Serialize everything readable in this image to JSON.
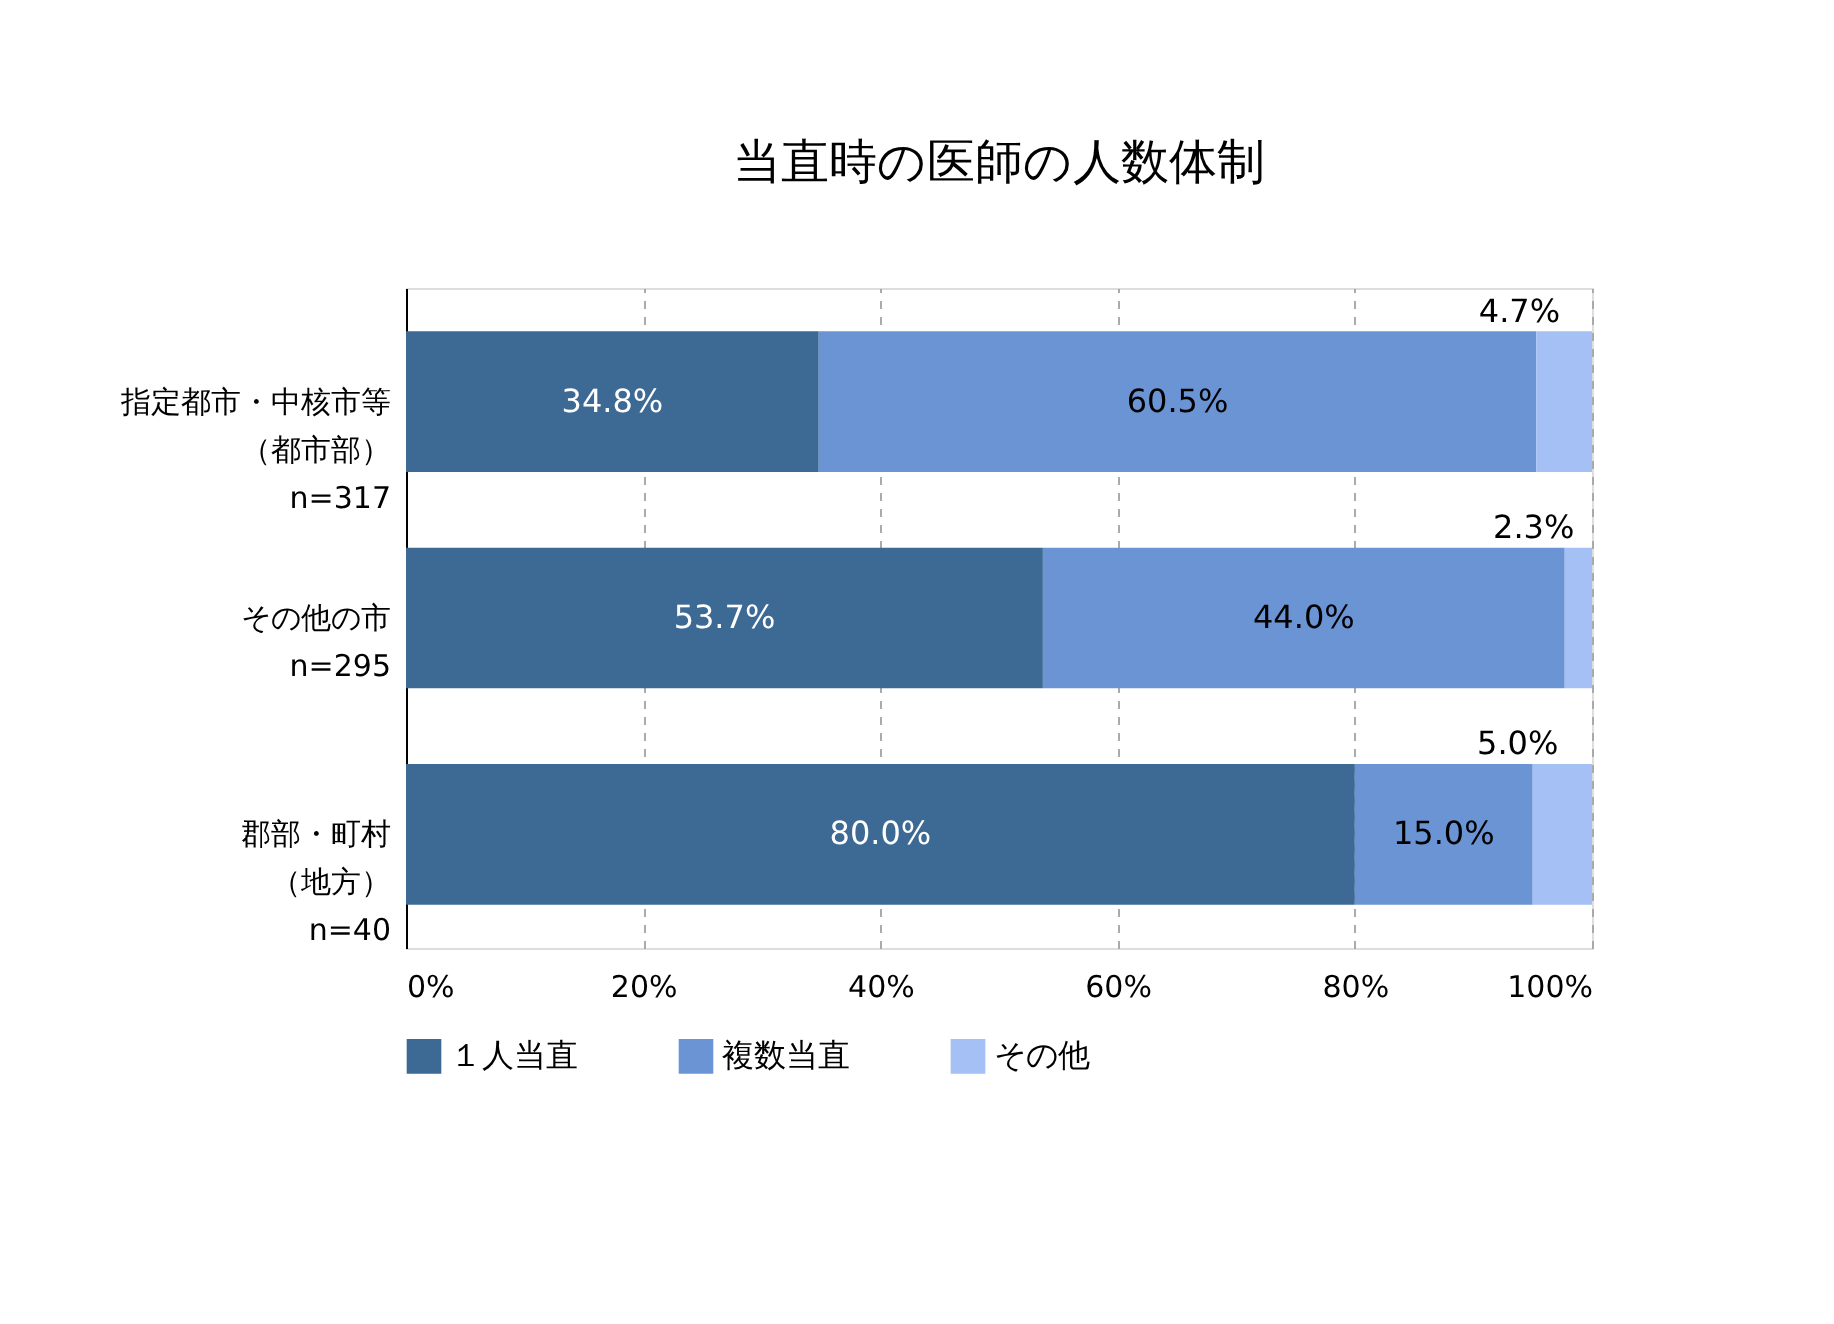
{
  "chart_data": {
    "type": "bar",
    "orientation": "horizontal",
    "stacked": true,
    "title": "当直時の医師の人数体制",
    "categories": [
      "指定都市・中核市等（都市部）\nn=317",
      "その他の市\nn=295",
      "郡部・町村（地方）\nn=40"
    ],
    "series": [
      {
        "name": "１人当直",
        "color": "#3c6a94",
        "values": [
          34.8,
          53.7,
          80.0
        ],
        "value_labels": [
          "34.8%",
          "53.7%",
          "80.0%"
        ]
      },
      {
        "name": "複数当直",
        "color": "#6a94d4",
        "values": [
          60.5,
          44.0,
          15.0
        ],
        "value_labels": [
          "60.5%",
          "44.0%",
          "15.0%"
        ]
      },
      {
        "name": "その他",
        "color": "#a4c0f4",
        "values": [
          4.7,
          2.3,
          5.0
        ],
        "value_labels": [
          "4.7%",
          "2.3%",
          "5.0%"
        ]
      }
    ],
    "xlim": [
      0,
      100
    ],
    "xticks": [
      {
        "value": 0,
        "label": "0%"
      },
      {
        "value": 20,
        "label": "20%"
      },
      {
        "value": 40,
        "label": "40%"
      },
      {
        "value": 60,
        "label": "60%"
      },
      {
        "value": 80,
        "label": "80%"
      },
      {
        "value": 100,
        "label": "100%"
      }
    ],
    "grid": "x",
    "legend": "bottom"
  }
}
